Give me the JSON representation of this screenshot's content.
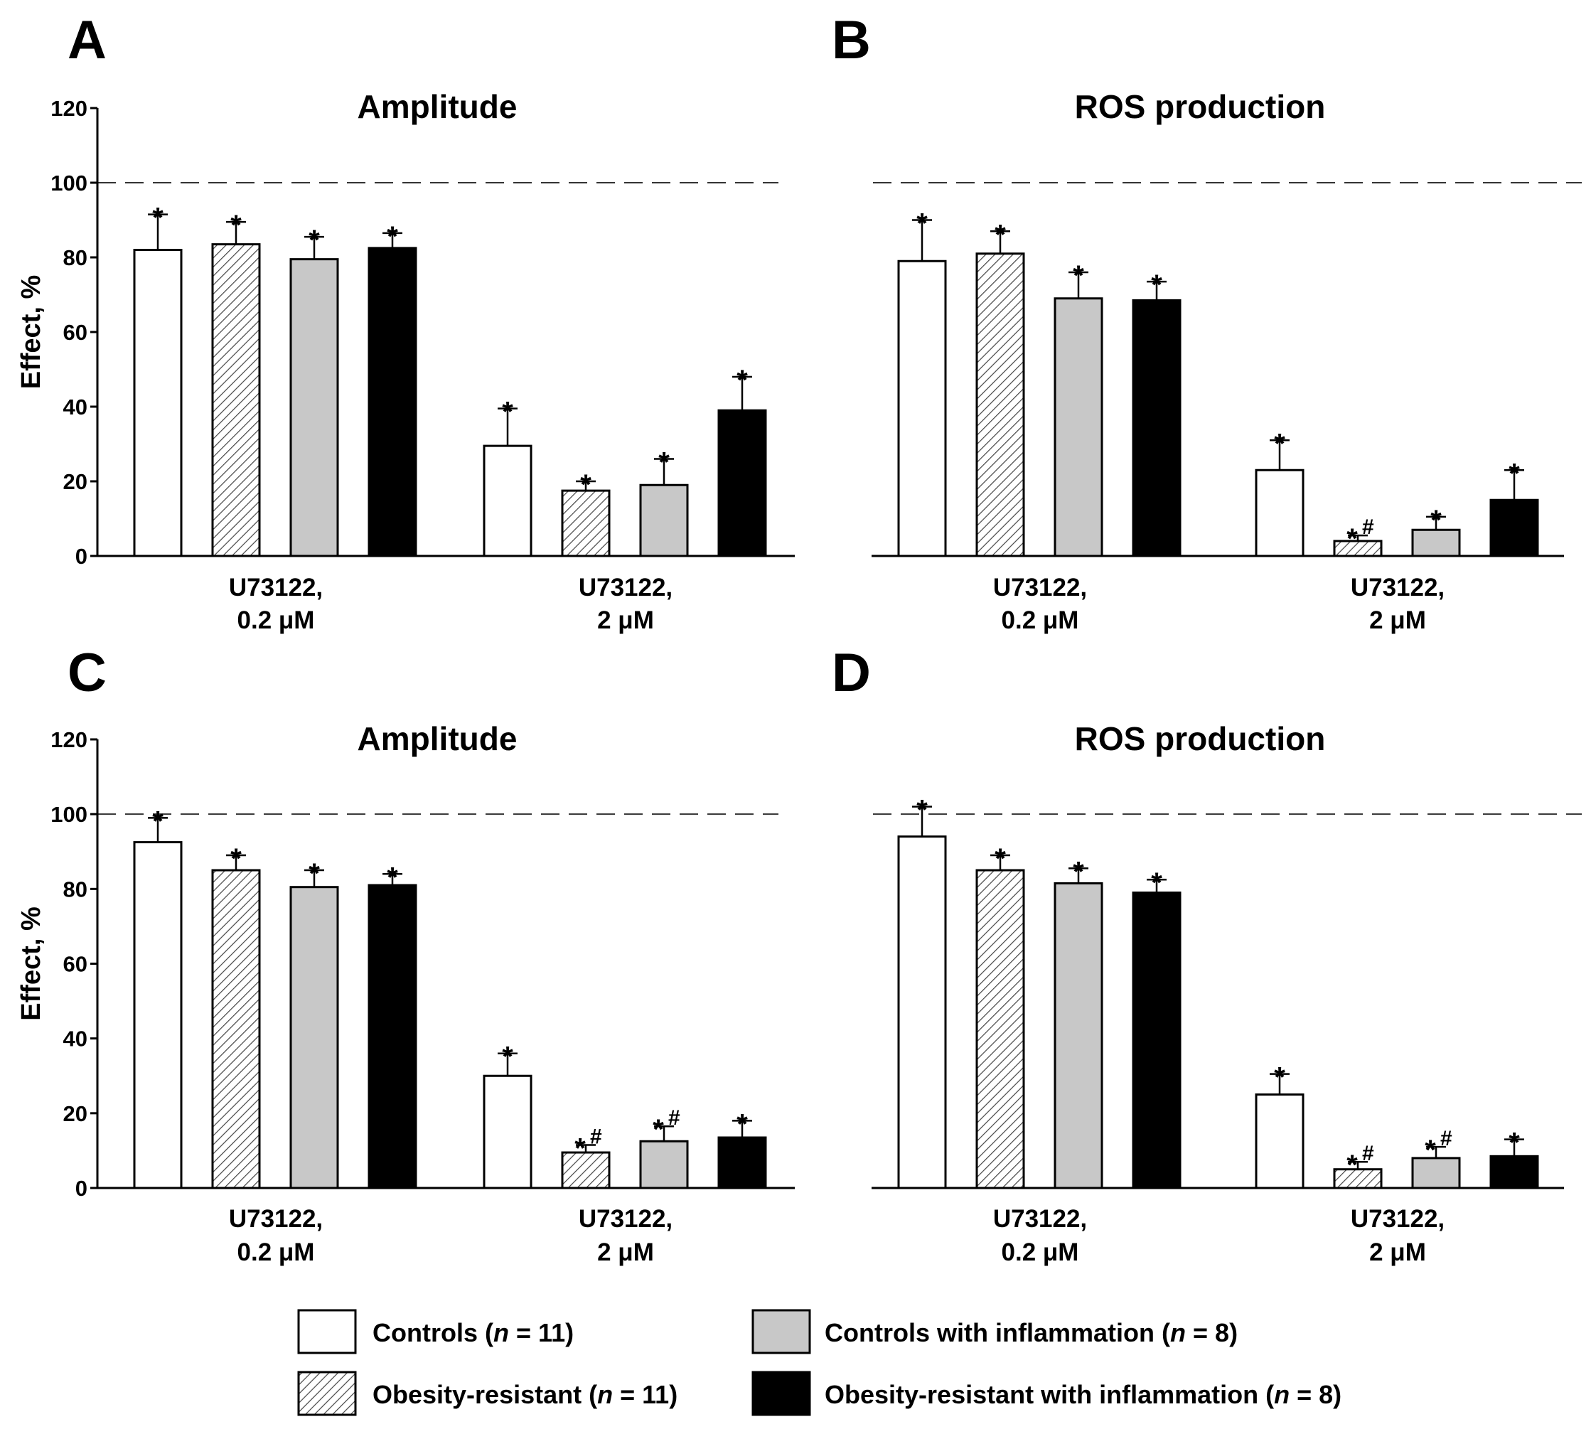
{
  "figure": {
    "legend": [
      {
        "key": "controls",
        "label": "Controls",
        "n_label": "n",
        "n_value": "= 11",
        "fill": "white"
      },
      {
        "key": "controls_inflammation",
        "label": "Controls with inflammation",
        "n_label": "n",
        "n_value": "= 8",
        "fill": "gray"
      },
      {
        "key": "obesity_resistant",
        "label": "Obesity-resistant",
        "n_label": "n",
        "n_value": "= 11",
        "fill": "hatch"
      },
      {
        "key": "obesity_resistant_inflammation",
        "label": "Obesity-resistant with inflammation",
        "n_label": "n",
        "n_value": "= 8",
        "fill": "black"
      }
    ],
    "colors": {
      "gray": "#c8c8c8",
      "black": "#000000",
      "white": "#ffffff"
    }
  },
  "chart_data": [
    {
      "panel": "A",
      "type": "bar",
      "title": "Amplitude",
      "ylabel": "Effect, %",
      "ylim": [
        0,
        120
      ],
      "yticks": [
        0,
        20,
        40,
        60,
        80,
        100,
        120
      ],
      "show_y_axis": true,
      "reference_line": 100,
      "groups": [
        [
          "U73122,",
          "0.2 μM"
        ],
        [
          "U73122,",
          "2 μM"
        ]
      ],
      "series_order": [
        "Controls",
        "Obesity-resistant",
        "Controls with inflammation",
        "Obesity-resistant with inflammation"
      ],
      "values": [
        [
          82,
          83.5,
          79.5,
          82.5
        ],
        [
          29.5,
          17.5,
          19,
          39
        ]
      ],
      "errors": [
        [
          9.5,
          6,
          6,
          4
        ],
        [
          10,
          2.5,
          7,
          9
        ]
      ],
      "annotations": [
        [
          "*",
          "*",
          "*",
          "*"
        ],
        [
          "*",
          "*",
          "*",
          "*"
        ]
      ]
    },
    {
      "panel": "B",
      "type": "bar",
      "title": "ROS production",
      "ylabel": "",
      "ylim": [
        0,
        120
      ],
      "yticks": [],
      "show_y_axis": false,
      "reference_line": 100,
      "groups": [
        [
          "U73122,",
          "0.2 μM"
        ],
        [
          "U73122,",
          "2 μM"
        ]
      ],
      "series_order": [
        "Controls",
        "Obesity-resistant",
        "Controls with inflammation",
        "Obesity-resistant with inflammation"
      ],
      "values": [
        [
          79,
          81,
          69,
          68.5
        ],
        [
          23,
          4,
          7,
          15
        ]
      ],
      "errors": [
        [
          11,
          6,
          7,
          5
        ],
        [
          8,
          1.5,
          3.5,
          8
        ]
      ],
      "annotations": [
        [
          "*",
          "*",
          "*",
          "*"
        ],
        [
          "*",
          "*#",
          "*",
          "*"
        ]
      ]
    },
    {
      "panel": "C",
      "type": "bar",
      "title": "Amplitude",
      "ylabel": "Effect, %",
      "ylim": [
        0,
        120
      ],
      "yticks": [
        0,
        20,
        40,
        60,
        80,
        100,
        120
      ],
      "show_y_axis": true,
      "reference_line": 100,
      "groups": [
        [
          "U73122,",
          "0.2 μM"
        ],
        [
          "U73122,",
          "2 μM"
        ]
      ],
      "series_order": [
        "Controls",
        "Obesity-resistant",
        "Controls with inflammation",
        "Obesity-resistant with inflammation"
      ],
      "values": [
        [
          92.5,
          85,
          80.5,
          81
        ],
        [
          30,
          9.5,
          12.5,
          13.5
        ]
      ],
      "errors": [
        [
          6.5,
          4,
          4.5,
          3
        ],
        [
          6,
          2,
          4,
          4.5
        ]
      ],
      "annotations": [
        [
          "*",
          "*",
          "*",
          "*"
        ],
        [
          "*",
          "*#",
          "*#",
          "*"
        ]
      ]
    },
    {
      "panel": "D",
      "type": "bar",
      "title": "ROS production",
      "ylabel": "",
      "ylim": [
        0,
        120
      ],
      "yticks": [],
      "show_y_axis": false,
      "reference_line": 100,
      "groups": [
        [
          "U73122,",
          "0.2 μM"
        ],
        [
          "U73122,",
          "2 μM"
        ]
      ],
      "series_order": [
        "Controls",
        "Obesity-resistant",
        "Controls with inflammation",
        "Obesity-resistant with inflammation"
      ],
      "values": [
        [
          94,
          85,
          81.5,
          79
        ],
        [
          25,
          5,
          8,
          8.5
        ]
      ],
      "errors": [
        [
          8,
          4,
          4,
          3.5
        ],
        [
          5.5,
          2,
          3,
          4.5
        ]
      ],
      "annotations": [
        [
          "*",
          "*",
          "*",
          "*"
        ],
        [
          "*",
          "*#",
          "*#",
          "*"
        ]
      ]
    }
  ]
}
